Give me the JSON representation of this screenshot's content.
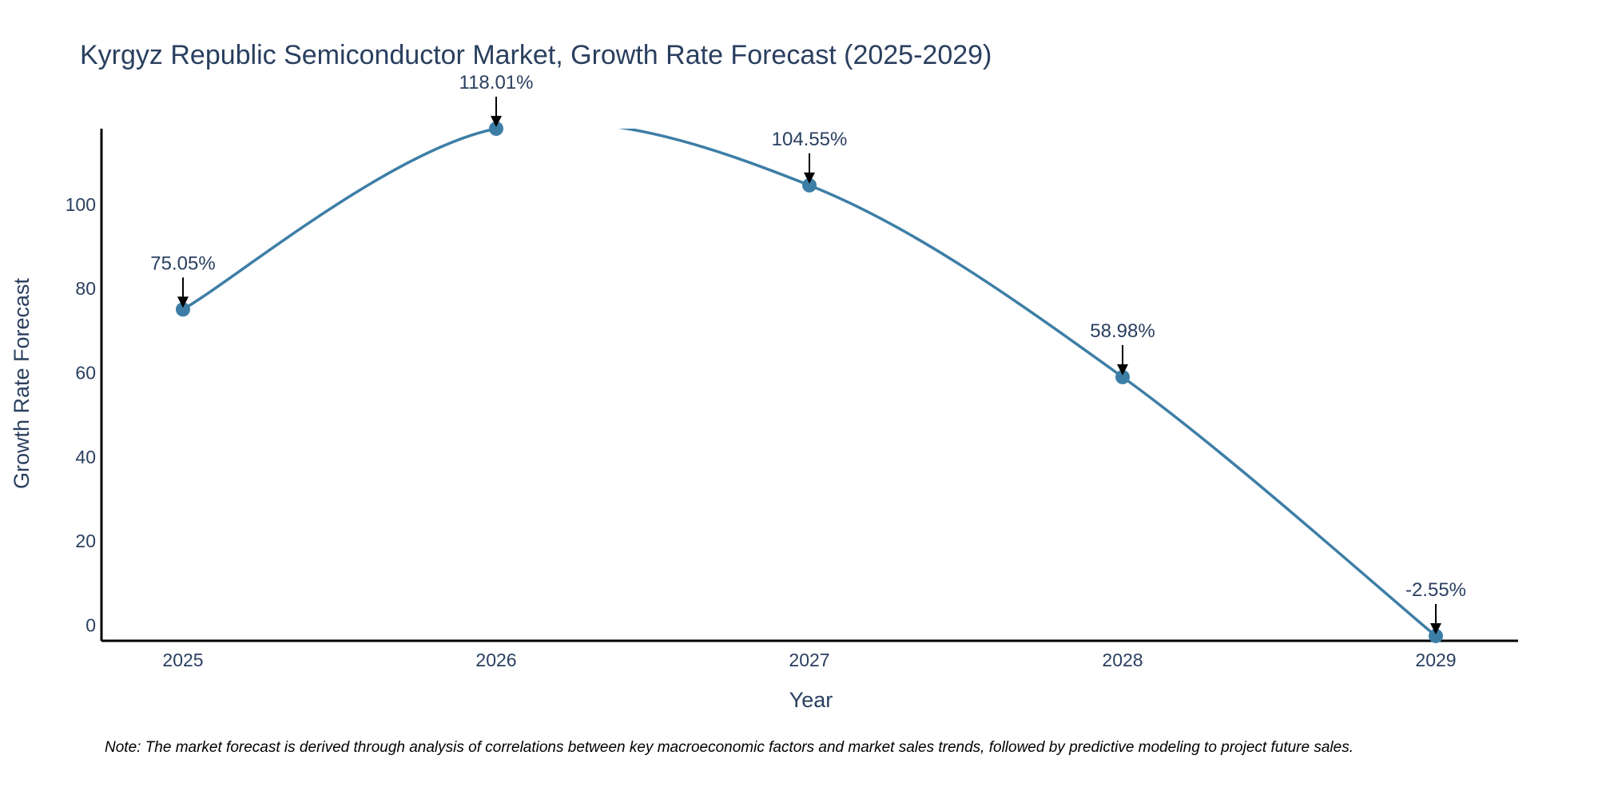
{
  "chart_data": {
    "type": "line",
    "title": "Kyrgyz Republic Semiconductor Market, Growth Rate Forecast (2025-2029)",
    "xlabel": "Year",
    "ylabel": "Growth Rate Forecast",
    "categories": [
      "2025",
      "2026",
      "2027",
      "2028",
      "2029"
    ],
    "series": [
      {
        "name": "Growth Rate Forecast",
        "values": [
          75.05,
          118.01,
          104.55,
          58.98,
          -2.55
        ]
      }
    ],
    "annotations": [
      "75.05%",
      "118.01%",
      "104.55%",
      "58.98%",
      "-2.55%"
    ],
    "y_ticks": [
      0,
      20,
      40,
      60,
      80,
      100
    ],
    "ylim": [
      -3.7,
      118.01
    ],
    "grid": false,
    "line_color": "#3d7ea6",
    "note": "Note: The market forecast is derived through analysis of correlations between key macroeconomic factors and market sales trends, followed by predictive modeling to project future sales."
  }
}
